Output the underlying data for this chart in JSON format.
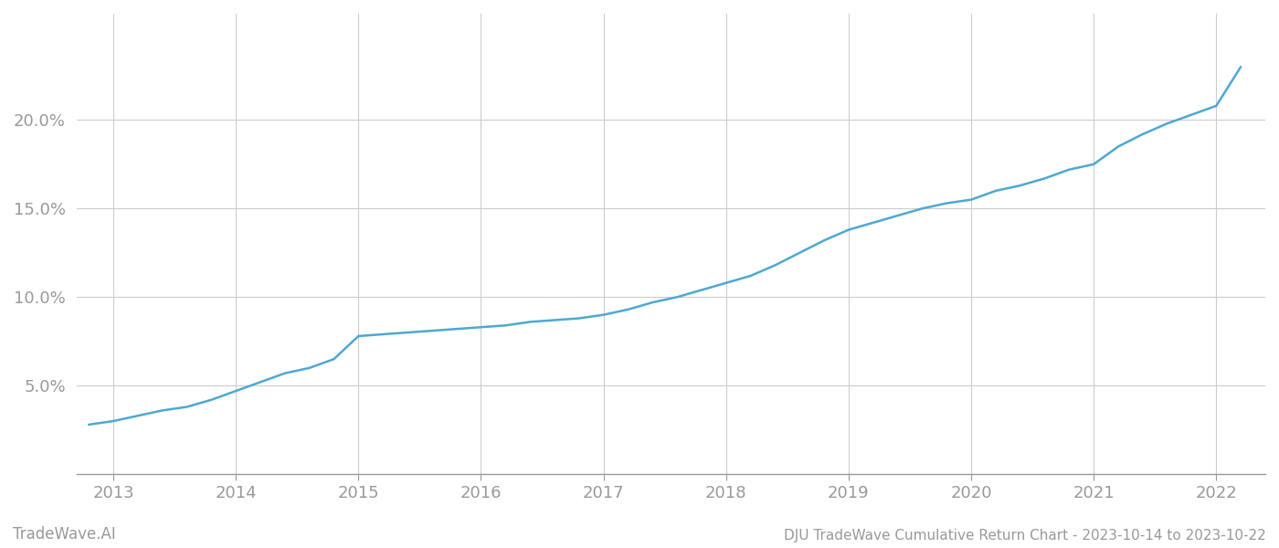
{
  "title": "DJU TradeWave Cumulative Return Chart - 2023-10-14 to 2023-10-22",
  "watermark": "TradeWave.AI",
  "line_color": "#4ea8d2",
  "background_color": "#ffffff",
  "grid_color": "#cccccc",
  "x_values": [
    2012.8,
    2013.0,
    2013.2,
    2013.4,
    2013.6,
    2013.8,
    2014.0,
    2014.2,
    2014.4,
    2014.6,
    2014.8,
    2015.0,
    2015.2,
    2015.4,
    2015.6,
    2015.8,
    2016.0,
    2016.2,
    2016.4,
    2016.6,
    2016.8,
    2017.0,
    2017.2,
    2017.4,
    2017.6,
    2017.8,
    2018.0,
    2018.2,
    2018.4,
    2018.6,
    2018.8,
    2019.0,
    2019.2,
    2019.4,
    2019.6,
    2019.8,
    2020.0,
    2020.2,
    2020.4,
    2020.6,
    2020.8,
    2021.0,
    2021.2,
    2021.4,
    2021.6,
    2021.8,
    2022.0,
    2022.2
  ],
  "y_values": [
    0.028,
    0.03,
    0.033,
    0.036,
    0.038,
    0.042,
    0.047,
    0.052,
    0.057,
    0.06,
    0.065,
    0.078,
    0.079,
    0.08,
    0.081,
    0.082,
    0.083,
    0.084,
    0.086,
    0.087,
    0.088,
    0.09,
    0.093,
    0.097,
    0.1,
    0.104,
    0.108,
    0.112,
    0.118,
    0.125,
    0.132,
    0.138,
    0.142,
    0.146,
    0.15,
    0.153,
    0.155,
    0.16,
    0.163,
    0.167,
    0.172,
    0.175,
    0.185,
    0.192,
    0.198,
    0.203,
    0.208,
    0.23
  ],
  "xlim": [
    2012.7,
    2022.4
  ],
  "ylim": [
    0.0,
    0.26
  ],
  "yticks": [
    0.05,
    0.1,
    0.15,
    0.2
  ],
  "ytick_labels": [
    "5.0%",
    "10.0%",
    "15.0%",
    "20.0%"
  ],
  "xticks": [
    2013,
    2014,
    2015,
    2016,
    2017,
    2018,
    2019,
    2020,
    2021,
    2022
  ],
  "xtick_labels": [
    "2013",
    "2014",
    "2015",
    "2016",
    "2017",
    "2018",
    "2019",
    "2020",
    "2021",
    "2022"
  ],
  "tick_color": "#999999",
  "tick_fontsize": 13,
  "title_fontsize": 11,
  "watermark_fontsize": 12,
  "line_width": 1.8,
  "spine_color": "#cccccc"
}
